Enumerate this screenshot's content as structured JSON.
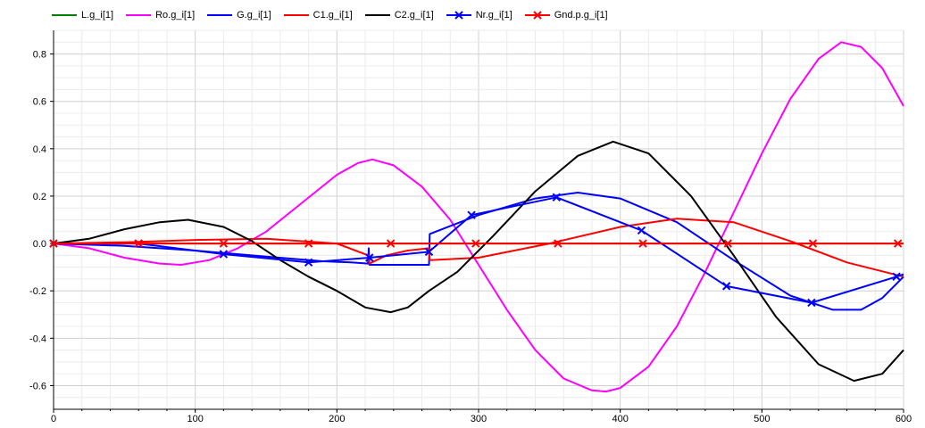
{
  "chart_data": {
    "type": "line",
    "title": "",
    "xlabel": "",
    "ylabel": "",
    "xlim": [
      0,
      600
    ],
    "ylim": [
      -0.7,
      0.9
    ],
    "xticks": [
      0,
      100,
      200,
      300,
      400,
      500,
      600
    ],
    "yticks": [
      -0.6,
      -0.4,
      -0.2,
      0.0,
      0.2,
      0.4,
      0.6,
      0.8
    ],
    "xtick_labels": [
      "0",
      "100",
      "200",
      "300",
      "400",
      "500",
      "600"
    ],
    "ytick_labels": [
      "-0.6",
      "-0.4",
      "-0.2",
      "0.0",
      "0.2",
      "0.4",
      "0.6",
      "0.8"
    ],
    "grid": true,
    "legend_position": "top",
    "series": [
      {
        "name": "L.g_i[1]",
        "color": "#008000",
        "marker": "none",
        "x": [
          0,
          600
        ],
        "y": [
          0,
          0
        ]
      },
      {
        "name": "Ro.g_i[1]",
        "color": "#ff00ff",
        "marker": "none",
        "x": [
          0,
          25,
          50,
          75,
          90,
          110,
          130,
          150,
          175,
          200,
          215,
          225,
          240,
          260,
          280,
          300,
          320,
          340,
          360,
          380,
          390,
          400,
          420,
          440,
          460,
          480,
          500,
          520,
          540,
          556,
          570,
          585,
          600
        ],
        "y": [
          0,
          -0.02,
          -0.06,
          -0.085,
          -0.09,
          -0.07,
          -0.02,
          0.05,
          0.17,
          0.29,
          0.34,
          0.355,
          0.33,
          0.24,
          0.1,
          -0.09,
          -0.28,
          -0.45,
          -0.57,
          -0.62,
          -0.625,
          -0.61,
          -0.52,
          -0.35,
          -0.12,
          0.13,
          0.38,
          0.61,
          0.78,
          0.85,
          0.83,
          0.74,
          0.58
        ]
      },
      {
        "name": "G.g_i[1]",
        "color": "#0000ff",
        "marker": "none",
        "x": [
          0,
          50,
          100,
          150,
          190,
          210,
          222,
          222.5,
          223,
          223.5,
          265,
          265.5,
          300,
          340,
          370,
          400,
          440,
          480,
          520,
          550,
          570,
          585,
          600
        ],
        "y": [
          0,
          -0.01,
          -0.03,
          -0.055,
          -0.075,
          -0.08,
          -0.085,
          -0.02,
          -0.09,
          -0.09,
          -0.09,
          0.04,
          0.12,
          0.19,
          0.215,
          0.19,
          0.09,
          -0.07,
          -0.22,
          -0.28,
          -0.28,
          -0.23,
          -0.14
        ]
      },
      {
        "name": "C1.g_i[1]",
        "color": "#ff0000",
        "marker": "none",
        "x": [
          0,
          50,
          100,
          150,
          200,
          222,
          223,
          235,
          250,
          265,
          265.5,
          300,
          350,
          400,
          440,
          480,
          520,
          560,
          600
        ],
        "y": [
          0,
          0.005,
          0.015,
          0.02,
          0.0,
          -0.05,
          -0.085,
          -0.05,
          -0.03,
          -0.02,
          -0.07,
          -0.06,
          0.0,
          0.07,
          0.105,
          0.09,
          0.01,
          -0.08,
          -0.14
        ]
      },
      {
        "name": "C2.g_i[1]",
        "color": "#000000",
        "marker": "none",
        "x": [
          0,
          25,
          50,
          75,
          95,
          120,
          140,
          160,
          180,
          200,
          220,
          238,
          250,
          265,
          285,
          310,
          340,
          370,
          395,
          420,
          450,
          480,
          510,
          540,
          565,
          585,
          600
        ],
        "y": [
          0,
          0.02,
          0.06,
          0.09,
          0.1,
          0.07,
          0.01,
          -0.07,
          -0.14,
          -0.2,
          -0.27,
          -0.29,
          -0.27,
          -0.2,
          -0.12,
          0.03,
          0.22,
          0.37,
          0.43,
          0.38,
          0.2,
          -0.05,
          -0.31,
          -0.51,
          -0.58,
          -0.55,
          -0.45
        ]
      },
      {
        "name": "Nr.g_i[1]",
        "color": "#0000ff",
        "marker": "x",
        "x": [
          0,
          60,
          120,
          180,
          223,
          265,
          295,
          355,
          415,
          475,
          535,
          595,
          600
        ],
        "y": [
          0,
          0,
          -0.045,
          -0.08,
          -0.06,
          -0.035,
          0.12,
          0.195,
          0.055,
          -0.18,
          -0.25,
          -0.14,
          -0.13
        ]
      },
      {
        "name": "Gnd.p.g_i[1]",
        "color": "#ff0000",
        "marker": "x",
        "x": [
          0,
          60,
          120,
          180,
          238,
          298,
          356,
          416,
          476,
          536,
          596,
          600
        ],
        "y": [
          0,
          0,
          0,
          0,
          0,
          0,
          0,
          0,
          0,
          0,
          0,
          0
        ]
      }
    ]
  }
}
